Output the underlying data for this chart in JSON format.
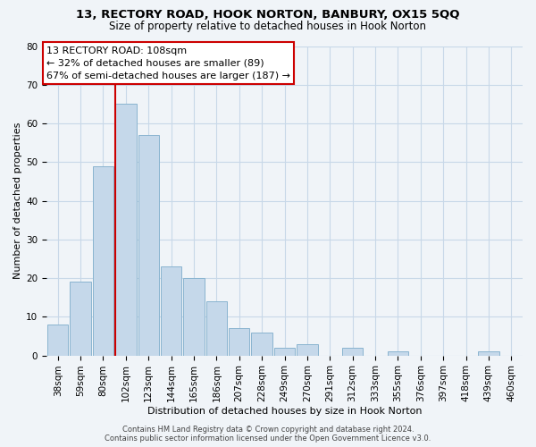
{
  "title": "13, RECTORY ROAD, HOOK NORTON, BANBURY, OX15 5QQ",
  "subtitle": "Size of property relative to detached houses in Hook Norton",
  "xlabel": "Distribution of detached houses by size in Hook Norton",
  "ylabel": "Number of detached properties",
  "bar_labels": [
    "38sqm",
    "59sqm",
    "80sqm",
    "102sqm",
    "123sqm",
    "144sqm",
    "165sqm",
    "186sqm",
    "207sqm",
    "228sqm",
    "249sqm",
    "270sqm",
    "291sqm",
    "312sqm",
    "333sqm",
    "355sqm",
    "376sqm",
    "397sqm",
    "418sqm",
    "439sqm",
    "460sqm"
  ],
  "bar_heights": [
    8,
    19,
    49,
    65,
    57,
    23,
    20,
    14,
    7,
    6,
    2,
    3,
    0,
    2,
    0,
    1,
    0,
    0,
    0,
    1,
    0
  ],
  "bar_color": "#c5d8ea",
  "bar_edge_color": "#8ab4d0",
  "vline_color": "#cc0000",
  "ylim": [
    0,
    80
  ],
  "yticks": [
    0,
    10,
    20,
    30,
    40,
    50,
    60,
    70,
    80
  ],
  "annotation_line1": "13 RECTORY ROAD: 108sqm",
  "annotation_line2": "← 32% of detached houses are smaller (89)",
  "annotation_line3": "67% of semi-detached houses are larger (187) →",
  "footer_text": "Contains HM Land Registry data © Crown copyright and database right 2024.\nContains public sector information licensed under the Open Government Licence v3.0.",
  "background_color": "#f0f4f8",
  "grid_color": "#c8d8e8",
  "title_fontsize": 9.5,
  "subtitle_fontsize": 8.5,
  "axis_label_fontsize": 8,
  "tick_fontsize": 7.5,
  "annotation_fontsize": 8,
  "footer_fontsize": 6
}
